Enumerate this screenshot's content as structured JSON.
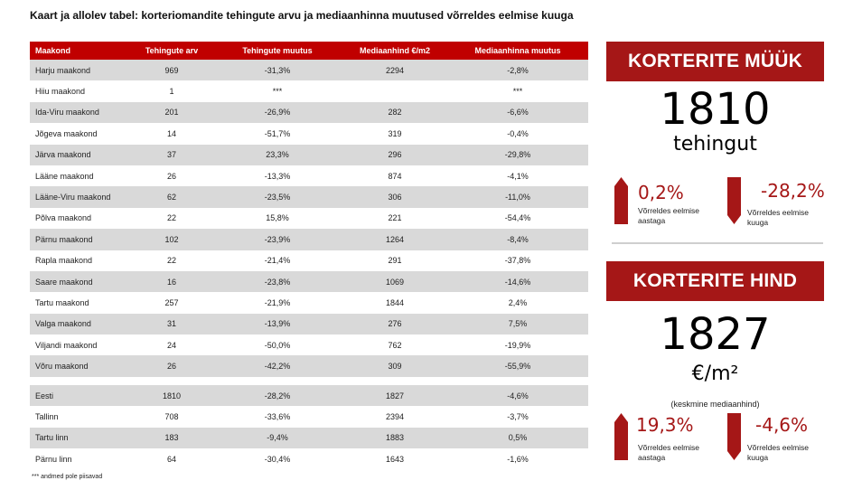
{
  "caption": "Kaart ja allolev tabel: korteriomandite tehingute arvu ja mediaanhinna muutused võrreldes eelmise kuuga",
  "table": {
    "headers": [
      "Maakond",
      "Tehingute arv",
      "Tehingute muutus",
      "Mediaanhind €/m2",
      "Mediaanhinna muutus"
    ],
    "rows": [
      [
        "Harju maakond",
        "969",
        "-31,3%",
        "2294",
        "-2,8%"
      ],
      [
        "Hiiu maakond",
        "1",
        "***",
        "",
        "***"
      ],
      [
        "Ida-Viru maakond",
        "201",
        "-26,9%",
        "282",
        "-6,6%"
      ],
      [
        "Jõgeva maakond",
        "14",
        "-51,7%",
        "319",
        "-0,4%"
      ],
      [
        "Järva maakond",
        "37",
        "23,3%",
        "296",
        "-29,8%"
      ],
      [
        "Lääne maakond",
        "26",
        "-13,3%",
        "874",
        "-4,1%"
      ],
      [
        "Lääne-Viru maakond",
        "62",
        "-23,5%",
        "306",
        "-11,0%"
      ],
      [
        "Põlva maakond",
        "22",
        "15,8%",
        "221",
        "-54,4%"
      ],
      [
        "Pärnu maakond",
        "102",
        "-23,9%",
        "1264",
        "-8,4%"
      ],
      [
        "Rapla maakond",
        "22",
        "-21,4%",
        "291",
        "-37,8%"
      ],
      [
        "Saare maakond",
        "16",
        "-23,8%",
        "1069",
        "-14,6%"
      ],
      [
        "Tartu maakond",
        "257",
        "-21,9%",
        "1844",
        "2,4%"
      ],
      [
        "Valga maakond",
        "31",
        "-13,9%",
        "276",
        "7,5%"
      ],
      [
        "Viljandi maakond",
        "24",
        "-50,0%",
        "762",
        "-19,9%"
      ],
      [
        "Võru maakond",
        "26",
        "-42,2%",
        "309",
        "-55,9%"
      ]
    ],
    "summary_rows": [
      [
        "Eesti",
        "1810",
        "-28,2%",
        "1827",
        "-4,6%"
      ],
      [
        "Tallinn",
        "708",
        "-33,6%",
        "2394",
        "-3,7%"
      ],
      [
        "Tartu linn",
        "183",
        "-9,4%",
        "1883",
        "0,5%"
      ],
      [
        "Pärnu linn",
        "64",
        "-30,4%",
        "1643",
        "-1,6%"
      ]
    ]
  },
  "footnote": "*** andmed pole piisavad",
  "sales": {
    "title": "KORTERITE MÜÜK",
    "value": "1810",
    "unit": "tehingut",
    "yearly_change": "0,2%",
    "yearly_label": "Võrreldes eelmise aastaga",
    "monthly_change": "-28,2%",
    "monthly_label": "Võrreldes eelmise kuuga"
  },
  "price": {
    "title": "KORTERITE HIND",
    "value": "1827",
    "unit": "€/m²",
    "note": "(keskmine mediaanhind)",
    "yearly_change": "19,3%",
    "yearly_label": "Võrreldes eelmise aastaga",
    "monthly_change": "-4,6%",
    "monthly_label": "Võrreldes eelmise kuuga"
  },
  "colors": {
    "accent": "#a51717",
    "header_red": "#c00000",
    "row_shade": "#d9d9d9"
  },
  "icons": {
    "up": "up-arrow-icon",
    "down": "down-arrow-icon"
  }
}
